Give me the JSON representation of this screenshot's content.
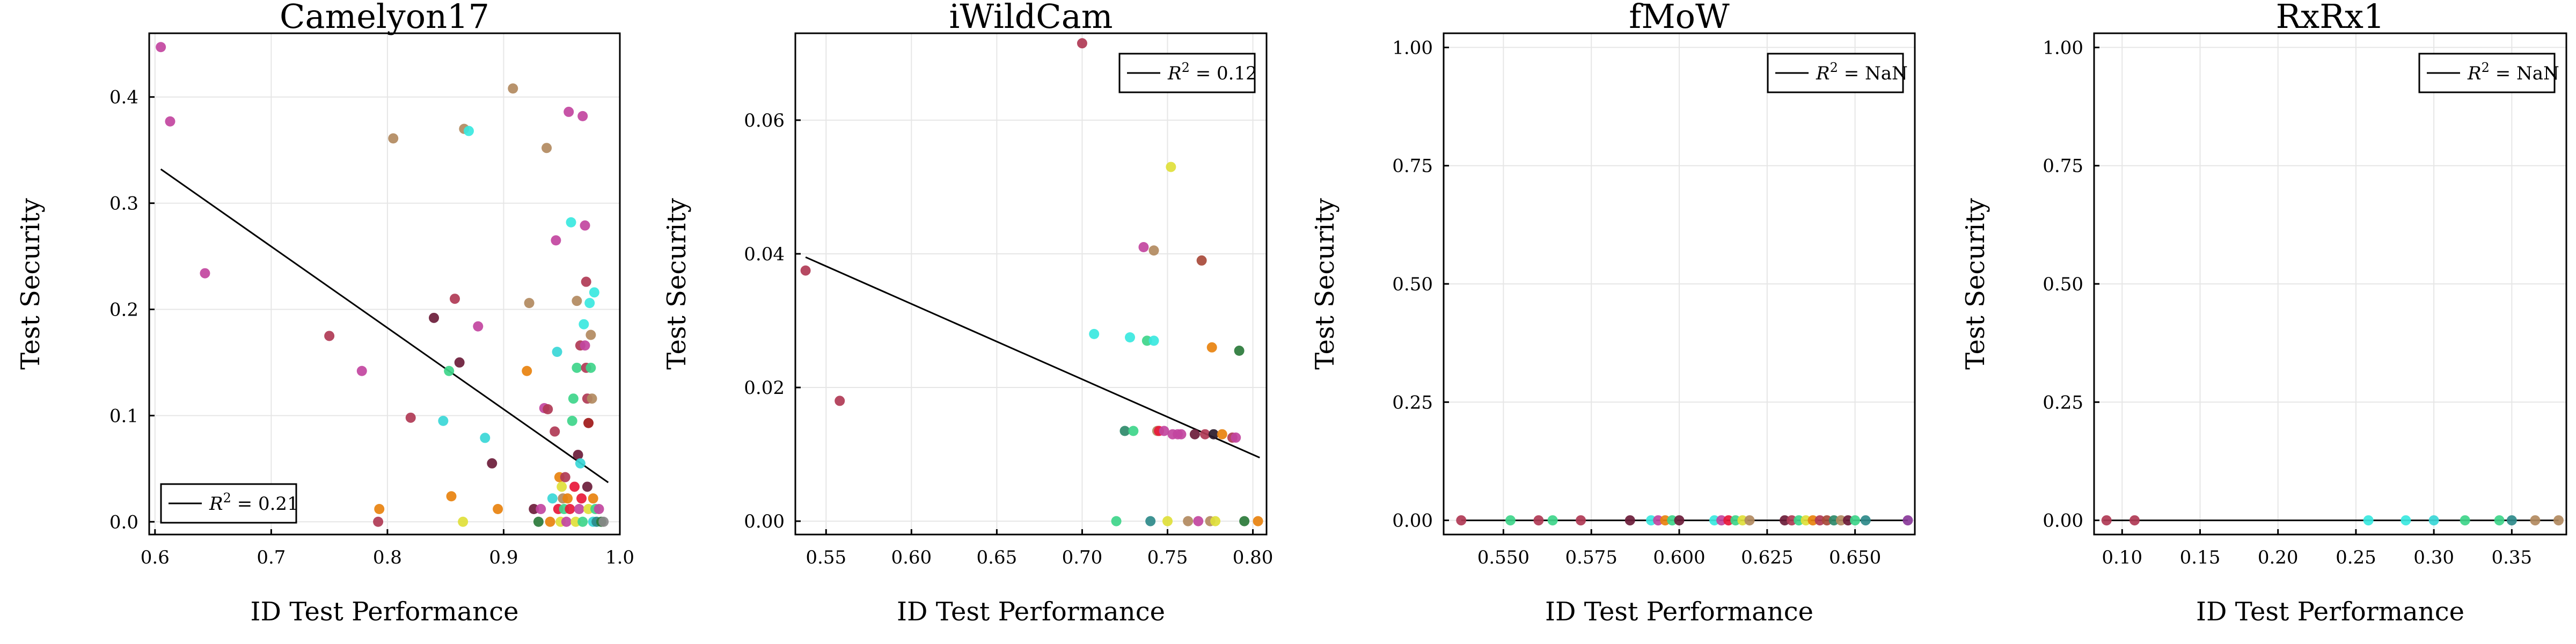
{
  "chart_data": [
    {
      "type": "scatter",
      "title": "Camelyon17",
      "xlabel": "ID Test Performance",
      "ylabel": "Test Security",
      "xlim": [
        0.595,
        1.0
      ],
      "ylim": [
        -0.012,
        0.46
      ],
      "xticks": [
        0.6,
        0.7,
        0.8,
        0.9,
        1.0
      ],
      "xtick_labels": [
        "0.6",
        "0.7",
        "0.8",
        "0.9",
        "1.0"
      ],
      "yticks": [
        0.0,
        0.1,
        0.2,
        0.3,
        0.4
      ],
      "ytick_labels": [
        "0.0",
        "0.1",
        "0.2",
        "0.3",
        "0.4"
      ],
      "grid": true,
      "legend": {
        "position": "bottom-left",
        "label_prefix": "R",
        "label_sup": "2",
        "label_value": " = 0.21"
      },
      "fit": {
        "x": [
          0.605,
          0.99
        ],
        "y": [
          0.332,
          0.037
        ]
      },
      "points": [
        {
          "x": 0.605,
          "y": 0.447,
          "c": "#c2459f"
        },
        {
          "x": 0.613,
          "y": 0.377,
          "c": "#c2459f"
        },
        {
          "x": 0.643,
          "y": 0.234,
          "c": "#c2459f"
        },
        {
          "x": 0.75,
          "y": 0.175,
          "c": "#b03a55"
        },
        {
          "x": 0.778,
          "y": 0.142,
          "c": "#c2459f"
        },
        {
          "x": 0.792,
          "y": 0.0,
          "c": "#b03a55"
        },
        {
          "x": 0.793,
          "y": 0.012,
          "c": "#e8820e"
        },
        {
          "x": 0.805,
          "y": 0.361,
          "c": "#b28a5f"
        },
        {
          "x": 0.82,
          "y": 0.098,
          "c": "#b03a55"
        },
        {
          "x": 0.84,
          "y": 0.192,
          "c": "#6b1c3a"
        },
        {
          "x": 0.848,
          "y": 0.095,
          "c": "#3ad7d7"
        },
        {
          "x": 0.853,
          "y": 0.142,
          "c": "#3ed58a"
        },
        {
          "x": 0.855,
          "y": 0.024,
          "c": "#e8820e"
        },
        {
          "x": 0.858,
          "y": 0.21,
          "c": "#b03a55"
        },
        {
          "x": 0.862,
          "y": 0.15,
          "c": "#6b1c3a"
        },
        {
          "x": 0.865,
          "y": 0.0,
          "c": "#e0e03a"
        },
        {
          "x": 0.866,
          "y": 0.37,
          "c": "#b28a5f"
        },
        {
          "x": 0.87,
          "y": 0.368,
          "c": "#3ae8e0"
        },
        {
          "x": 0.878,
          "y": 0.184,
          "c": "#c2459f"
        },
        {
          "x": 0.884,
          "y": 0.079,
          "c": "#3ad7d7"
        },
        {
          "x": 0.89,
          "y": 0.055,
          "c": "#6b1c3a"
        },
        {
          "x": 0.895,
          "y": 0.012,
          "c": "#e8820e"
        },
        {
          "x": 0.908,
          "y": 0.408,
          "c": "#b28a5f"
        },
        {
          "x": 0.92,
          "y": 0.142,
          "c": "#e8820e"
        },
        {
          "x": 0.922,
          "y": 0.206,
          "c": "#b28a5f"
        },
        {
          "x": 0.926,
          "y": 0.012,
          "c": "#6b1c3a"
        },
        {
          "x": 0.93,
          "y": 0.0,
          "c": "#2a7a3a"
        },
        {
          "x": 0.932,
          "y": 0.012,
          "c": "#c2459f"
        },
        {
          "x": 0.935,
          "y": 0.107,
          "c": "#c2459f"
        },
        {
          "x": 0.937,
          "y": 0.352,
          "c": "#b28a5f"
        },
        {
          "x": 0.938,
          "y": 0.106,
          "c": "#b03a55"
        },
        {
          "x": 0.94,
          "y": 0.0,
          "c": "#e8820e"
        },
        {
          "x": 0.942,
          "y": 0.022,
          "c": "#3ad7d7"
        },
        {
          "x": 0.944,
          "y": 0.085,
          "c": "#b03a55"
        },
        {
          "x": 0.945,
          "y": 0.265,
          "c": "#c2459f"
        },
        {
          "x": 0.946,
          "y": 0.16,
          "c": "#3ad7d7"
        },
        {
          "x": 0.947,
          "y": 0.012,
          "c": "#e8183a"
        },
        {
          "x": 0.948,
          "y": 0.042,
          "c": "#e8820e"
        },
        {
          "x": 0.949,
          "y": 0.0,
          "c": "#e0e03a"
        },
        {
          "x": 0.95,
          "y": 0.033,
          "c": "#e0e03a"
        },
        {
          "x": 0.951,
          "y": 0.022,
          "c": "#b28a5f"
        },
        {
          "x": 0.952,
          "y": 0.012,
          "c": "#3ed58a"
        },
        {
          "x": 0.953,
          "y": 0.042,
          "c": "#b03a55"
        },
        {
          "x": 0.954,
          "y": 0.0,
          "c": "#c2459f"
        },
        {
          "x": 0.955,
          "y": 0.022,
          "c": "#e8820e"
        },
        {
          "x": 0.956,
          "y": 0.386,
          "c": "#c2459f"
        },
        {
          "x": 0.957,
          "y": 0.012,
          "c": "#e8183a"
        },
        {
          "x": 0.958,
          "y": 0.282,
          "c": "#3ae8e0"
        },
        {
          "x": 0.959,
          "y": 0.095,
          "c": "#3ed58a"
        },
        {
          "x": 0.96,
          "y": 0.116,
          "c": "#3ed58a"
        },
        {
          "x": 0.961,
          "y": 0.033,
          "c": "#e8183a"
        },
        {
          "x": 0.962,
          "y": 0.0,
          "c": "#e0e03a"
        },
        {
          "x": 0.963,
          "y": 0.145,
          "c": "#3ed58a"
        },
        {
          "x": 0.963,
          "y": 0.208,
          "c": "#b28a5f"
        },
        {
          "x": 0.964,
          "y": 0.063,
          "c": "#6b1c3a"
        },
        {
          "x": 0.965,
          "y": 0.012,
          "c": "#c2459f"
        },
        {
          "x": 0.966,
          "y": 0.166,
          "c": "#b03a55"
        },
        {
          "x": 0.966,
          "y": 0.055,
          "c": "#3ad7d7"
        },
        {
          "x": 0.967,
          "y": 0.022,
          "c": "#e8183a"
        },
        {
          "x": 0.968,
          "y": 0.0,
          "c": "#3ed58a"
        },
        {
          "x": 0.968,
          "y": 0.382,
          "c": "#c2459f"
        },
        {
          "x": 0.969,
          "y": 0.186,
          "c": "#3ae8e0"
        },
        {
          "x": 0.97,
          "y": 0.279,
          "c": "#c2459f"
        },
        {
          "x": 0.97,
          "y": 0.166,
          "c": "#c2459f"
        },
        {
          "x": 0.971,
          "y": 0.226,
          "c": "#b03a55"
        },
        {
          "x": 0.971,
          "y": 0.145,
          "c": "#b03a55"
        },
        {
          "x": 0.972,
          "y": 0.116,
          "c": "#b03a55"
        },
        {
          "x": 0.972,
          "y": 0.033,
          "c": "#6b1c3a"
        },
        {
          "x": 0.973,
          "y": 0.012,
          "c": "#e0e03a"
        },
        {
          "x": 0.973,
          "y": 0.093,
          "c": "#a01818"
        },
        {
          "x": 0.974,
          "y": 0.206,
          "c": "#3ae8e0"
        },
        {
          "x": 0.975,
          "y": 0.176,
          "c": "#b28a5f"
        },
        {
          "x": 0.975,
          "y": 0.145,
          "c": "#3ed58a"
        },
        {
          "x": 0.976,
          "y": 0.116,
          "c": "#b28a5f"
        },
        {
          "x": 0.977,
          "y": 0.022,
          "c": "#e8820e"
        },
        {
          "x": 0.977,
          "y": 0.0,
          "c": "#3ad7d7"
        },
        {
          "x": 0.978,
          "y": 0.216,
          "c": "#3ae8e0"
        },
        {
          "x": 0.979,
          "y": 0.012,
          "c": "#3ed58a"
        },
        {
          "x": 0.98,
          "y": 0.0,
          "c": "#2e8a8a"
        },
        {
          "x": 0.982,
          "y": 0.012,
          "c": "#c2459f"
        },
        {
          "x": 0.984,
          "y": 0.0,
          "c": "#2a7a3a"
        },
        {
          "x": 0.986,
          "y": 0.0,
          "c": "#8a8a8a"
        }
      ]
    },
    {
      "type": "scatter",
      "title": "iWildCam",
      "xlabel": "ID Test Performance",
      "ylabel": "Test Security",
      "xlim": [
        0.532,
        0.808
      ],
      "ylim": [
        -0.002,
        0.073
      ],
      "xticks": [
        0.55,
        0.6,
        0.65,
        0.7,
        0.75,
        0.8
      ],
      "xtick_labels": [
        "0.55",
        "0.60",
        "0.65",
        "0.70",
        "0.75",
        "0.80"
      ],
      "yticks": [
        0.0,
        0.02,
        0.04,
        0.06
      ],
      "ytick_labels": [
        "0.00",
        "0.02",
        "0.04",
        "0.06"
      ],
      "grid": true,
      "legend": {
        "position": "top-right",
        "label_prefix": "R",
        "label_sup": "2",
        "label_value": " = 0.12"
      },
      "fit": {
        "x": [
          0.538,
          0.804
        ],
        "y": [
          0.0395,
          0.0095
        ]
      },
      "points": [
        {
          "x": 0.538,
          "y": 0.0375,
          "c": "#b03a55"
        },
        {
          "x": 0.558,
          "y": 0.018,
          "c": "#b03a55"
        },
        {
          "x": 0.7,
          "y": 0.0715,
          "c": "#b03a55"
        },
        {
          "x": 0.707,
          "y": 0.028,
          "c": "#3ae8e0"
        },
        {
          "x": 0.72,
          "y": 0.0,
          "c": "#3ed58a"
        },
        {
          "x": 0.725,
          "y": 0.0135,
          "c": "#2e8a6a"
        },
        {
          "x": 0.728,
          "y": 0.0275,
          "c": "#3ae8e0"
        },
        {
          "x": 0.73,
          "y": 0.0135,
          "c": "#3ed58a"
        },
        {
          "x": 0.736,
          "y": 0.041,
          "c": "#c2459f"
        },
        {
          "x": 0.738,
          "y": 0.027,
          "c": "#3ed58a"
        },
        {
          "x": 0.74,
          "y": 0.0,
          "c": "#2e8a8a"
        },
        {
          "x": 0.742,
          "y": 0.0405,
          "c": "#b28a5f"
        },
        {
          "x": 0.742,
          "y": 0.027,
          "c": "#3ae8e0"
        },
        {
          "x": 0.744,
          "y": 0.0135,
          "c": "#b28a5f"
        },
        {
          "x": 0.745,
          "y": 0.0135,
          "c": "#e8183a"
        },
        {
          "x": 0.748,
          "y": 0.0135,
          "c": "#c2459f"
        },
        {
          "x": 0.75,
          "y": 0.0,
          "c": "#e0e03a"
        },
        {
          "x": 0.752,
          "y": 0.053,
          "c": "#e0e03a"
        },
        {
          "x": 0.753,
          "y": 0.013,
          "c": "#c2459f"
        },
        {
          "x": 0.756,
          "y": 0.013,
          "c": "#c2459f"
        },
        {
          "x": 0.758,
          "y": 0.013,
          "c": "#c2459f"
        },
        {
          "x": 0.762,
          "y": 0.0,
          "c": "#b28a5f"
        },
        {
          "x": 0.766,
          "y": 0.013,
          "c": "#6b1c3a"
        },
        {
          "x": 0.768,
          "y": 0.0,
          "c": "#c2459f"
        },
        {
          "x": 0.77,
          "y": 0.039,
          "c": "#a84a3a"
        },
        {
          "x": 0.772,
          "y": 0.013,
          "c": "#b03a55"
        },
        {
          "x": 0.775,
          "y": 0.0,
          "c": "#b28a5f"
        },
        {
          "x": 0.776,
          "y": 0.026,
          "c": "#e8820e"
        },
        {
          "x": 0.777,
          "y": 0.013,
          "c": "#2a1a2a"
        },
        {
          "x": 0.778,
          "y": 0.0,
          "c": "#e0e03a"
        },
        {
          "x": 0.782,
          "y": 0.013,
          "c": "#e8820e"
        },
        {
          "x": 0.788,
          "y": 0.0125,
          "c": "#b03a55"
        },
        {
          "x": 0.79,
          "y": 0.0125,
          "c": "#c2459f"
        },
        {
          "x": 0.792,
          "y": 0.0255,
          "c": "#2a7a3a"
        },
        {
          "x": 0.795,
          "y": 0.0,
          "c": "#2a7a3a"
        },
        {
          "x": 0.803,
          "y": 0.0,
          "c": "#e8820e"
        }
      ]
    },
    {
      "type": "scatter",
      "title": "fMoW",
      "xlabel": "ID Test Performance",
      "ylabel": "Test Security",
      "xlim": [
        0.533,
        0.667
      ],
      "ylim": [
        -0.03,
        1.03
      ],
      "xticks": [
        0.55,
        0.575,
        0.6,
        0.625,
        0.65
      ],
      "xtick_labels": [
        "0.550",
        "0.575",
        "0.600",
        "0.625",
        "0.650"
      ],
      "yticks": [
        0.0,
        0.25,
        0.5,
        0.75,
        1.0
      ],
      "ytick_labels": [
        "0.00",
        "0.25",
        "0.50",
        "0.75",
        "1.00"
      ],
      "grid": true,
      "legend": {
        "position": "top-right",
        "label_prefix": "R",
        "label_sup": "2",
        "label_value": " = NaN"
      },
      "fit": {
        "x": [
          0.538,
          0.665
        ],
        "y": [
          0.0,
          0.0
        ]
      },
      "points": [
        {
          "x": 0.538,
          "y": 0.0,
          "c": "#b03a55"
        },
        {
          "x": 0.552,
          "y": 0.0,
          "c": "#3ed58a"
        },
        {
          "x": 0.56,
          "y": 0.0,
          "c": "#b03a55"
        },
        {
          "x": 0.564,
          "y": 0.0,
          "c": "#3ed58a"
        },
        {
          "x": 0.572,
          "y": 0.0,
          "c": "#b03a55"
        },
        {
          "x": 0.586,
          "y": 0.0,
          "c": "#6b1c3a"
        },
        {
          "x": 0.592,
          "y": 0.0,
          "c": "#3ae8e0"
        },
        {
          "x": 0.594,
          "y": 0.0,
          "c": "#c2459f"
        },
        {
          "x": 0.596,
          "y": 0.0,
          "c": "#e8820e"
        },
        {
          "x": 0.598,
          "y": 0.0,
          "c": "#3ed58a"
        },
        {
          "x": 0.6,
          "y": 0.0,
          "c": "#6b1c3a"
        },
        {
          "x": 0.61,
          "y": 0.0,
          "c": "#3ae8e0"
        },
        {
          "x": 0.612,
          "y": 0.0,
          "c": "#c2459f"
        },
        {
          "x": 0.614,
          "y": 0.0,
          "c": "#e8183a"
        },
        {
          "x": 0.616,
          "y": 0.0,
          "c": "#3ed58a"
        },
        {
          "x": 0.618,
          "y": 0.0,
          "c": "#e0e03a"
        },
        {
          "x": 0.62,
          "y": 0.0,
          "c": "#b28a5f"
        },
        {
          "x": 0.63,
          "y": 0.0,
          "c": "#6b1c3a"
        },
        {
          "x": 0.632,
          "y": 0.0,
          "c": "#b03a55"
        },
        {
          "x": 0.634,
          "y": 0.0,
          "c": "#3ed58a"
        },
        {
          "x": 0.636,
          "y": 0.0,
          "c": "#e0e03a"
        },
        {
          "x": 0.638,
          "y": 0.0,
          "c": "#e8820e"
        },
        {
          "x": 0.64,
          "y": 0.0,
          "c": "#b03a55"
        },
        {
          "x": 0.642,
          "y": 0.0,
          "c": "#a84a3a"
        },
        {
          "x": 0.644,
          "y": 0.0,
          "c": "#2e8a6a"
        },
        {
          "x": 0.646,
          "y": 0.0,
          "c": "#b28a5f"
        },
        {
          "x": 0.648,
          "y": 0.0,
          "c": "#6b1c3a"
        },
        {
          "x": 0.65,
          "y": 0.0,
          "c": "#3ed58a"
        },
        {
          "x": 0.653,
          "y": 0.0,
          "c": "#2e8a8a"
        },
        {
          "x": 0.665,
          "y": 0.0,
          "c": "#8a3a9a"
        }
      ]
    },
    {
      "type": "scatter",
      "title": "RxRx1",
      "xlabel": "ID Test Performance",
      "ylabel": "Test Security",
      "xlim": [
        0.082,
        0.385
      ],
      "ylim": [
        -0.03,
        1.03
      ],
      "xticks": [
        0.1,
        0.15,
        0.2,
        0.25,
        0.3,
        0.35
      ],
      "xtick_labels": [
        "0.10",
        "0.15",
        "0.20",
        "0.25",
        "0.30",
        "0.35"
      ],
      "yticks": [
        0.0,
        0.25,
        0.5,
        0.75,
        1.0
      ],
      "ytick_labels": [
        "0.00",
        "0.25",
        "0.50",
        "0.75",
        "1.00"
      ],
      "grid": true,
      "legend": {
        "position": "top-right",
        "label_prefix": "R",
        "label_sup": "2",
        "label_value": " = NaN"
      },
      "fit": {
        "x": [
          0.088,
          0.38
        ],
        "y": [
          0.0,
          0.0
        ]
      },
      "points": [
        {
          "x": 0.09,
          "y": 0.0,
          "c": "#b03a55"
        },
        {
          "x": 0.108,
          "y": 0.0,
          "c": "#b03a55"
        },
        {
          "x": 0.258,
          "y": 0.0,
          "c": "#3ae8e0"
        },
        {
          "x": 0.282,
          "y": 0.0,
          "c": "#3ae8e0"
        },
        {
          "x": 0.3,
          "y": 0.0,
          "c": "#3ad7d7"
        },
        {
          "x": 0.32,
          "y": 0.0,
          "c": "#3ed58a"
        },
        {
          "x": 0.342,
          "y": 0.0,
          "c": "#3ed58a"
        },
        {
          "x": 0.35,
          "y": 0.0,
          "c": "#2e8a8a"
        },
        {
          "x": 0.365,
          "y": 0.0,
          "c": "#b28a5f"
        },
        {
          "x": 0.38,
          "y": 0.0,
          "c": "#b28a5f"
        }
      ]
    }
  ]
}
